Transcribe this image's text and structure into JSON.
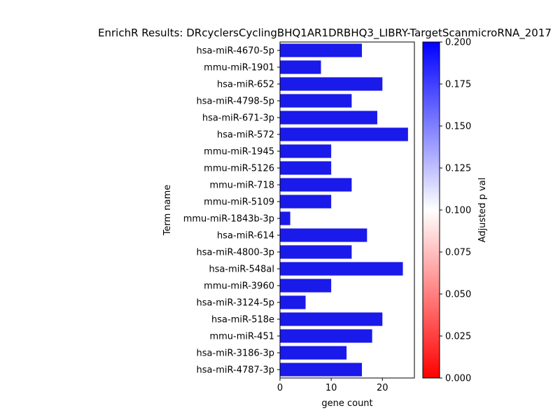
{
  "chart_data": {
    "type": "bar",
    "orientation": "horizontal",
    "title": "EnrichR Results: DRcyclersCyclingBHQ1AR1DRBHQ3_LIBRY-TargetScanmicroRNA_2017",
    "xlabel": "gene count",
    "ylabel": "Term name",
    "xlim": [
      0,
      26.25
    ],
    "xticks": [
      0,
      10,
      20
    ],
    "categories": [
      "hsa-miR-4670-5p",
      "mmu-miR-1901",
      "hsa-miR-652",
      "hsa-miR-4798-5p",
      "hsa-miR-671-3p",
      "hsa-miR-572",
      "mmu-miR-1945",
      "mmu-miR-5126",
      "mmu-miR-718",
      "mmu-miR-5109",
      "mmu-miR-1843b-3p",
      "hsa-miR-614",
      "hsa-miR-4800-3p",
      "hsa-miR-548al",
      "mmu-miR-3960",
      "hsa-miR-3124-5p",
      "hsa-miR-518e",
      "mmu-miR-451",
      "hsa-miR-3186-3p",
      "hsa-miR-4787-3p"
    ],
    "values": [
      16,
      8,
      20,
      14,
      19,
      25,
      10,
      10,
      14,
      10,
      2,
      17,
      14,
      24,
      10,
      5,
      20,
      18,
      13,
      16
    ],
    "bar_color": "#1a1aea",
    "grid": false,
    "legend": "none",
    "colorbar": {
      "label": "Adjusted p val",
      "range": [
        0,
        0.2
      ],
      "ticks": [
        "0.000",
        "0.025",
        "0.050",
        "0.075",
        "0.100",
        "0.125",
        "0.150",
        "0.175",
        "0.200"
      ],
      "colormap": [
        "#ff0000",
        "#ffffff",
        "#0000ff"
      ]
    }
  }
}
